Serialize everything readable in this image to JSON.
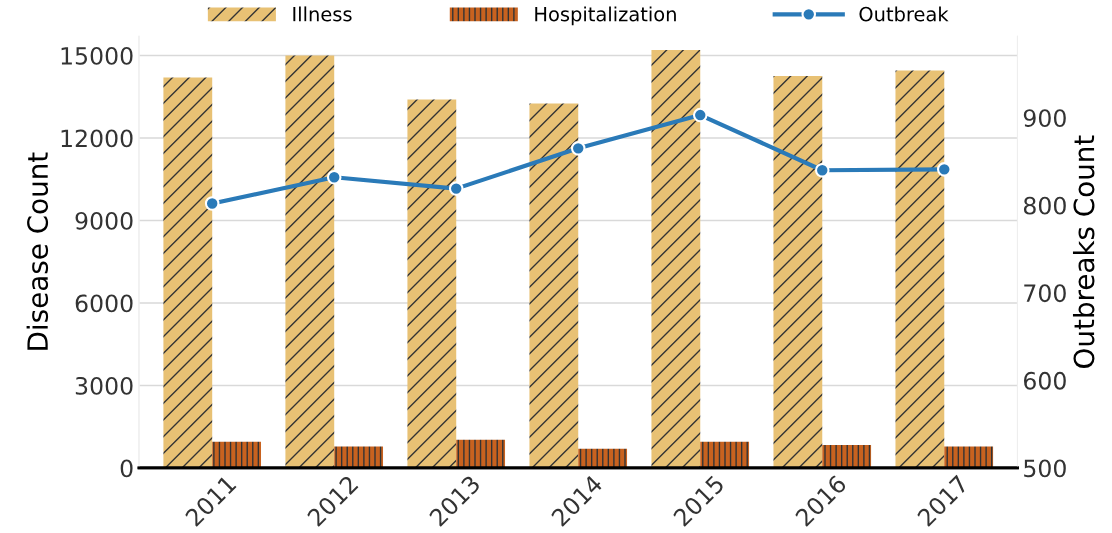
{
  "chart_data": {
    "type": "bar",
    "ylabel": "Disease Count",
    "y2label": "Outbreaks Count",
    "categories": [
      "2011",
      "2012",
      "2013",
      "2014",
      "2015",
      "2016",
      "2017"
    ],
    "series": [
      {
        "name": "Illness",
        "color": "#e8c174",
        "values": [
          14200,
          15000,
          13400,
          13250,
          15200,
          14250,
          14450
        ]
      },
      {
        "name": "Hospitalization",
        "color": "#c8621f",
        "values": [
          950,
          780,
          1030,
          700,
          950,
          840,
          780
        ]
      },
      {
        "name": "Outbreak",
        "type": "line",
        "axis": "y2",
        "color": "#2a7ab8",
        "values": [
          802,
          832,
          819,
          865,
          903,
          840,
          841
        ]
      }
    ],
    "ylim": [
      0,
      15700
    ],
    "yticks": [
      0,
      3000,
      6000,
      9000,
      12000,
      15000
    ],
    "y2lim": [
      500,
      993
    ],
    "y2ticks": [
      500,
      600,
      700,
      800,
      900
    ],
    "grid": "y",
    "legend": "top",
    "marker": "circle"
  }
}
